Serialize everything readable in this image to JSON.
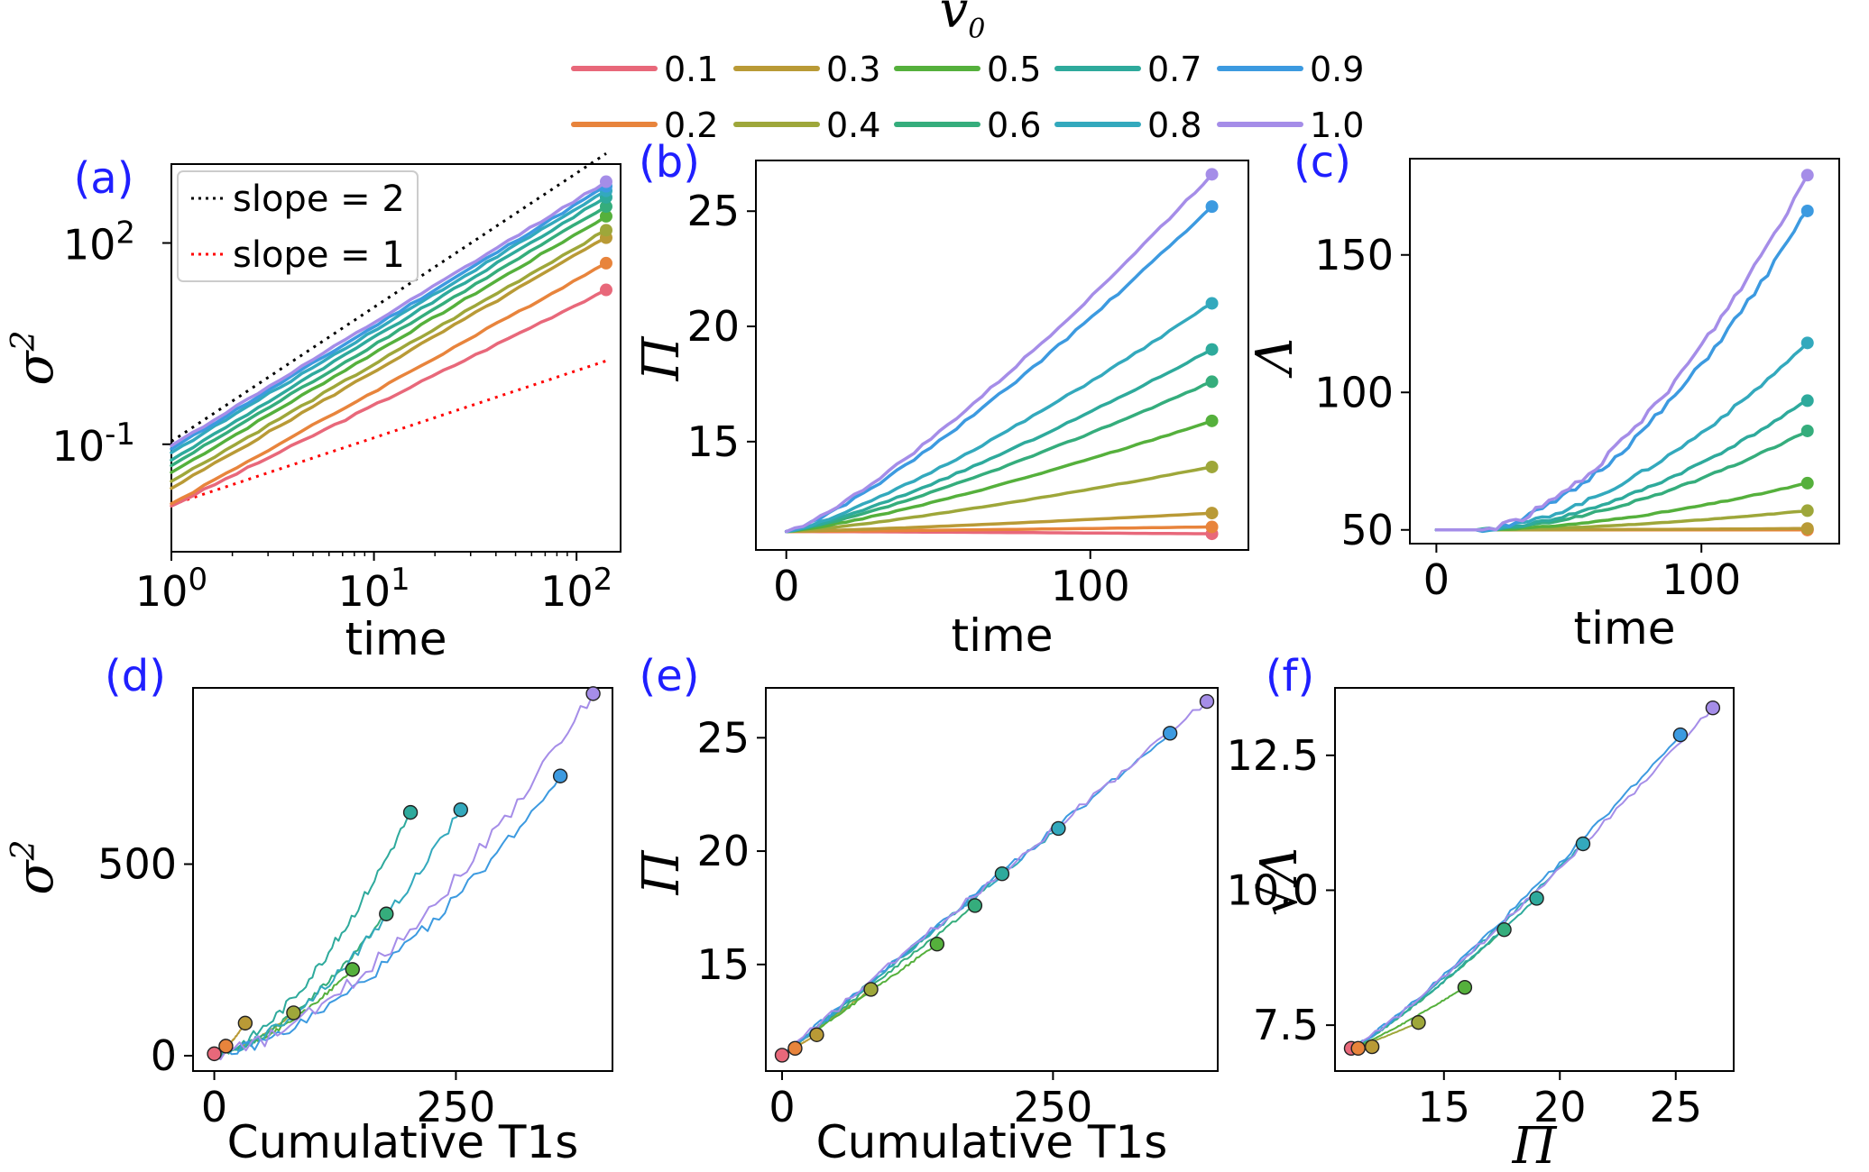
{
  "legend": {
    "title": "v",
    "title_sub": "0",
    "entries": [
      {
        "label": "0.1",
        "color": "#e8687a"
      },
      {
        "label": "0.2",
        "color": "#e8843c"
      },
      {
        "label": "0.3",
        "color": "#b99a36"
      },
      {
        "label": "0.4",
        "color": "#9ea73a"
      },
      {
        "label": "0.5",
        "color": "#55b03c"
      },
      {
        "label": "0.6",
        "color": "#35ad7c"
      },
      {
        "label": "0.7",
        "color": "#2eaa9c"
      },
      {
        "label": "0.8",
        "color": "#33a9bd"
      },
      {
        "label": "0.9",
        "color": "#3c9ae0"
      },
      {
        "label": "1.0",
        "color": "#a58de8"
      }
    ]
  },
  "chart_data": [
    {
      "panel": "(a)",
      "type": "line",
      "xlabel": "time",
      "ylabel": "σ",
      "ylabel_sup": "2",
      "xscale": "log",
      "yscale": "log",
      "xlim": [
        1,
        165
      ],
      "ylim": [
        0.0025,
        1500
      ],
      "xticks": [
        {
          "v": 1,
          "base": "10",
          "exp": "0"
        },
        {
          "v": 10,
          "base": "10",
          "exp": "1"
        },
        {
          "v": 100,
          "base": "10",
          "exp": "2"
        }
      ],
      "yticks": [
        {
          "v": 0.1,
          "base": "10",
          "exp": "-1"
        },
        {
          "v": 100,
          "base": "10",
          "exp": "2"
        }
      ],
      "x_end": 140,
      "start_values": [
        0.012,
        0.013,
        0.022,
        0.028,
        0.038,
        0.048,
        0.058,
        0.075,
        0.085,
        0.095
      ],
      "end_values": [
        20,
        50,
        120,
        155,
        250,
        350,
        480,
        600,
        700,
        820
      ],
      "reference_lines": [
        {
          "label": "slope = 2",
          "color": "#000000",
          "slope": 2,
          "y_at_1": 0.11
        },
        {
          "label": "slope = 1",
          "color": "#ff0000",
          "slope": 1,
          "y_at_1": 0.0125
        }
      ],
      "legend_position": "top-left"
    },
    {
      "panel": "(b)",
      "type": "line",
      "xlabel": "time",
      "ylabel": "Π",
      "xlim": [
        -10,
        152
      ],
      "ylim": [
        10.3,
        27.2
      ],
      "xticks": [
        0,
        100
      ],
      "yticks": [
        15,
        20,
        25
      ],
      "x_end": 140,
      "start": 11.1,
      "end_values": [
        11.0,
        11.3,
        11.9,
        13.9,
        15.9,
        17.6,
        19.0,
        21.0,
        25.2,
        26.6
      ],
      "curve_power": 1.25
    },
    {
      "panel": "(c)",
      "type": "line",
      "xlabel": "time",
      "ylabel": "Λ",
      "xlim": [
        -10,
        152
      ],
      "ylim": [
        45,
        185
      ],
      "xticks": [
        0,
        100
      ],
      "yticks": [
        50,
        100,
        150
      ],
      "x_end": 140,
      "start": 50,
      "end_values": [
        50,
        50,
        50.5,
        57,
        67,
        86,
        97,
        118,
        166,
        179
      ],
      "onset_time": 15,
      "curve_power": 1.7
    },
    {
      "panel": "(d)",
      "type": "scatter",
      "xlabel": "Cumulative T1s",
      "ylabel": "σ",
      "ylabel_sup": "2",
      "xlim": [
        -22,
        412
      ],
      "ylim": [
        -40,
        960
      ],
      "xticks": [
        0,
        250
      ],
      "yticks": [
        0,
        500
      ],
      "end_points": [
        [
          0,
          5
        ],
        [
          12,
          25
        ],
        [
          32,
          85
        ],
        [
          82,
          112
        ],
        [
          143,
          225
        ],
        [
          178,
          370
        ],
        [
          203,
          635
        ],
        [
          255,
          642
        ],
        [
          358,
          730
        ],
        [
          392,
          945
        ]
      ]
    },
    {
      "panel": "(e)",
      "type": "scatter",
      "xlabel": "Cumulative T1s",
      "ylabel": "Π",
      "xlim": [
        -15,
        402
      ],
      "ylim": [
        10.3,
        27.2
      ],
      "xticks": [
        0,
        250
      ],
      "yticks": [
        15,
        20,
        25
      ],
      "end_points": [
        [
          0,
          11.0
        ],
        [
          12,
          11.3
        ],
        [
          32,
          11.9
        ],
        [
          82,
          13.9
        ],
        [
          143,
          15.9
        ],
        [
          178,
          17.6
        ],
        [
          203,
          19.0
        ],
        [
          255,
          21.0
        ],
        [
          358,
          25.2
        ],
        [
          392,
          26.6
        ]
      ]
    },
    {
      "panel": "(f)",
      "type": "scatter",
      "xlabel": "Π",
      "ylabel": "√Λ",
      "xlim": [
        10.3,
        27.5
      ],
      "ylim": [
        6.65,
        13.75
      ],
      "xticks": [
        15,
        20,
        25
      ],
      "yticks": [
        "7.5",
        "10.0",
        "12.5"
      ],
      "end_points": [
        [
          11.0,
          7.07
        ],
        [
          11.3,
          7.07
        ],
        [
          11.9,
          7.1
        ],
        [
          13.9,
          7.55
        ],
        [
          15.9,
          8.2
        ],
        [
          17.6,
          9.27
        ],
        [
          19.0,
          9.85
        ],
        [
          21.0,
          10.86
        ],
        [
          25.2,
          12.88
        ],
        [
          26.6,
          13.38
        ]
      ]
    }
  ]
}
